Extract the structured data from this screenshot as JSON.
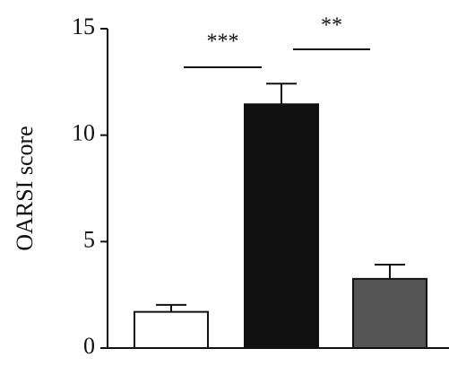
{
  "chart_data": {
    "type": "bar",
    "y_label": "OARSI score",
    "categories": [
      null,
      null,
      null
    ],
    "values": [
      1.7,
      11.45,
      3.25
    ],
    "errors": [
      0.33,
      0.97,
      0.67
    ],
    "colors": [
      "#ffffff",
      "#111111",
      "#555555"
    ],
    "ylim": [
      0,
      15
    ],
    "yticks": [
      0,
      5,
      10,
      15
    ],
    "annotations": [
      {
        "text": "***"
      },
      {
        "text": "**"
      }
    ]
  }
}
